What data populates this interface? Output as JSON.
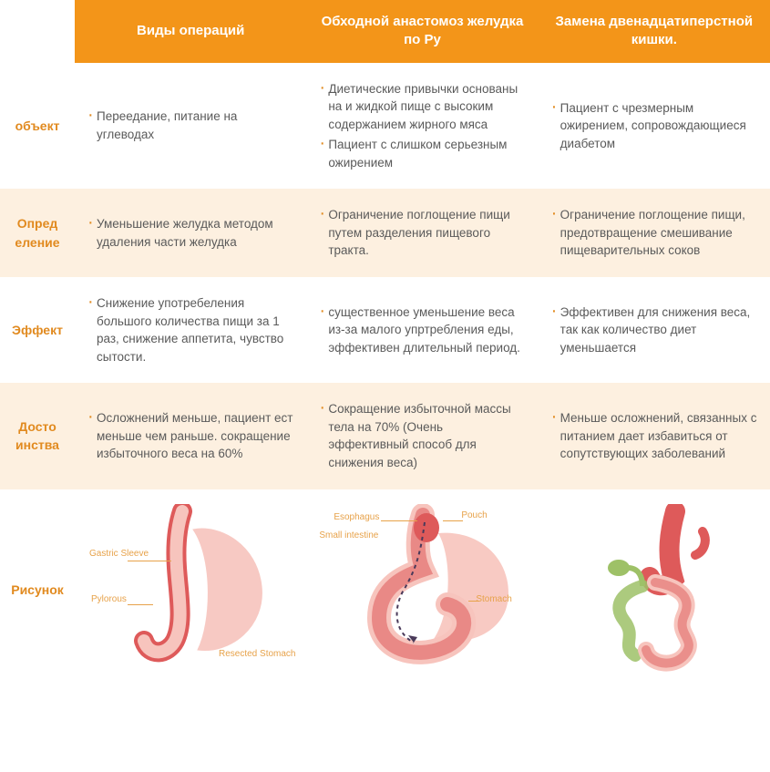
{
  "colors": {
    "header_bg": "#f39519",
    "header_blank_bg": "#ffffff",
    "row_alt_bg": "#fdf0e0",
    "row_bg": "#ffffff",
    "label_color": "#e18a1f",
    "text_color": "#5a5a5a",
    "bullet_color": "#e18a1f",
    "diag_label_color": "#e7a24a",
    "stomach_fill": "#f7c4bd",
    "stomach_stroke": "#e66b6b",
    "stomach_dark": "#de5a5a",
    "intestine_green": "#9ec167",
    "lead_color": "#e7a24a"
  },
  "header": {
    "col1": "Виды операций",
    "col2": "Обходной анастомоз желудка по Ру",
    "col3": "Замена двенадцатиперстной кишки."
  },
  "rows": [
    {
      "label": "объект",
      "alt": false,
      "cells": [
        [
          "Переедание, питание на углеводах"
        ],
        [
          "Диетические привычки основаны на и жидкой пище с высоким содержанием жирного мяса",
          "Пациент с слишком серьезным ожирением"
        ],
        [
          "Пациент с чрезмерным ожирением, сопровождающиеся диабетом"
        ]
      ]
    },
    {
      "label": "Опред еление",
      "alt": true,
      "cells": [
        [
          "Уменьшение желудка методом удаления части желудка"
        ],
        [
          "Ограничение поглощение пищи путем разделения пищевого тракта."
        ],
        [
          "Ограничение поглощение пищи, предотвращение смешивание пищеварительных соков"
        ]
      ]
    },
    {
      "label": "Эффект",
      "alt": false,
      "cells": [
        [
          "Снижение употребеления большого количества пищи за 1 раз, снижение аппетита, чувство сытости."
        ],
        [
          "существенное уменьшение веса из-за малого упртребления еды, эффективен длительный период."
        ],
        [
          "Эффективен для снижения веса, так как количество диет уменьшается"
        ]
      ]
    },
    {
      "label": "Досто инства",
      "alt": true,
      "cells": [
        [
          "Осложнений меньше, пациент ест меньше чем раньше. сокращение избыточного веса на 60%"
        ],
        [
          "Сокращение избыточной массы тела на 70% (Очень эффективный способ для снижения веса)"
        ],
        [
          "Меньше осложнений, связанных с питанием дает избавиться от сопутствующих заболеваний"
        ]
      ]
    }
  ],
  "diagram_row_label": "Рисунок",
  "diagram_labels": {
    "d1": {
      "gastric_sleeve": "Gastric Sleeve",
      "pylorous": "Pylorous",
      "resected": "Resected Stomach"
    },
    "d2": {
      "esophagus": "Esophagus",
      "small_intestine": "Small intestine",
      "pouch": "Pouch",
      "stomach": "Stomach"
    }
  }
}
